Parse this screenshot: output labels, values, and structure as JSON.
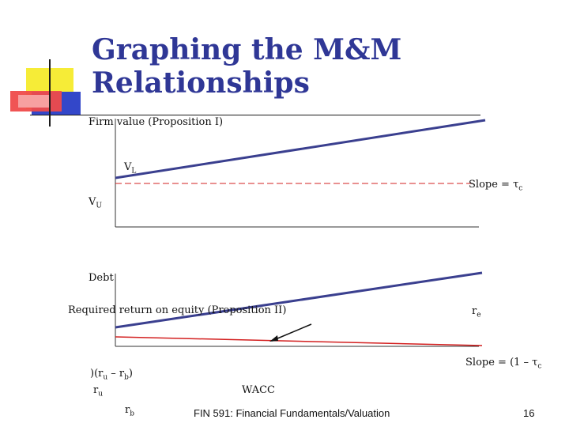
{
  "slide": {
    "title_line1": "Graphing the M&M",
    "title_line2": "Relationships"
  },
  "graph1": {
    "axis_label": "Firm value (Proposition I)",
    "vl_label": "V",
    "vl_sub": "L",
    "vu_label": "V",
    "vu_sub": "U",
    "slope_label": "Slope = τ",
    "slope_sub": "c"
  },
  "graph2": {
    "debt_label": "Debt",
    "axis_label": "Required return on equity  (Proposition II)",
    "re_label": "r",
    "re_sub": "e",
    "slope_label": "Slope = (1 – τ",
    "slope_sub": "c",
    "spread_open": ")(r",
    "spread_sub_u": "u",
    "spread_minus": " – r",
    "spread_sub_b": "b",
    "spread_close": ")",
    "ru_label": "r",
    "ru_sub": "u",
    "wacc_label": "WACC",
    "rb_label": "r",
    "rb_sub": "b"
  },
  "footer": {
    "course": "FIN 591: Financial Fundamentals/Valuation",
    "page_number": "16"
  },
  "colors": {
    "title": "#2f3796",
    "vl_line": "#3a3f8f",
    "dashed": "#d32020",
    "wacc_line": "#d32020"
  }
}
